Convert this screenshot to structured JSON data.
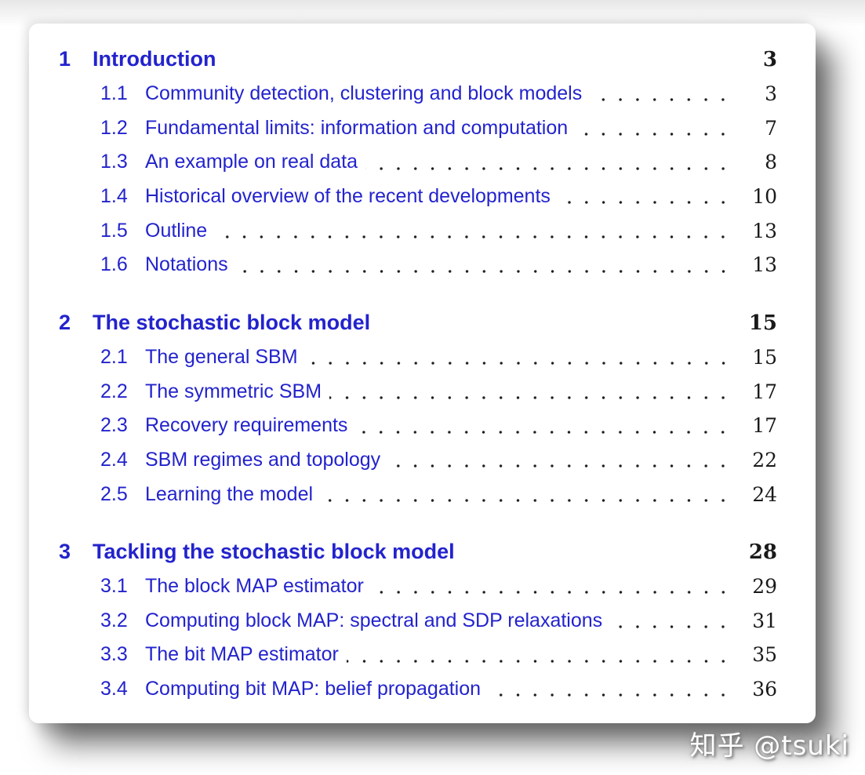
{
  "colors": {
    "link": "#2323cd",
    "ink": "#1a1a1a",
    "dot": "#1f1f1f",
    "card": "#ffffff",
    "page": "#ffffff"
  },
  "watermark": {
    "text": "知乎 @tsuki"
  },
  "toc": {
    "sections": [
      {
        "number": "1",
        "title": "Introduction",
        "page": "3",
        "entries": [
          {
            "number": "1.1",
            "title": "Community detection, clustering and block models",
            "page": "3"
          },
          {
            "number": "1.2",
            "title": "Fundamental limits: information and computation",
            "page": "7"
          },
          {
            "number": "1.3",
            "title": "An example on real data",
            "page": "8"
          },
          {
            "number": "1.4",
            "title": "Historical overview of the recent developments",
            "page": "10"
          },
          {
            "number": "1.5",
            "title": "Outline",
            "page": "13"
          },
          {
            "number": "1.6",
            "title": "Notations",
            "page": "13"
          }
        ]
      },
      {
        "number": "2",
        "title": "The stochastic block model",
        "page": "15",
        "entries": [
          {
            "number": "2.1",
            "title": "The general SBM",
            "page": "15"
          },
          {
            "number": "2.2",
            "title": "The symmetric SBM",
            "page": "17"
          },
          {
            "number": "2.3",
            "title": "Recovery requirements",
            "page": "17"
          },
          {
            "number": "2.4",
            "title": "SBM regimes and topology",
            "page": "22"
          },
          {
            "number": "2.5",
            "title": "Learning the model",
            "page": "24"
          }
        ]
      },
      {
        "number": "3",
        "title": "Tackling the stochastic block model",
        "page": "28",
        "entries": [
          {
            "number": "3.1",
            "title": "The block MAP estimator",
            "page": "29"
          },
          {
            "number": "3.2",
            "title": "Computing block MAP: spectral and SDP relaxations",
            "page": "31"
          },
          {
            "number": "3.3",
            "title": "The bit MAP estimator",
            "page": "35"
          },
          {
            "number": "3.4",
            "title": "Computing bit MAP: belief propagation",
            "page": "36"
          }
        ]
      }
    ]
  }
}
